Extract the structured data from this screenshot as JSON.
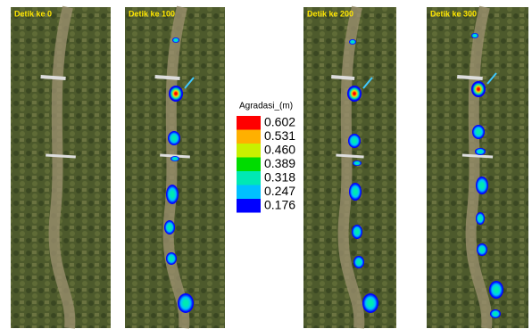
{
  "panels": [
    {
      "label": "Detik ke 0"
    },
    {
      "label": "Detik ke 100"
    },
    {
      "label": "Detik ke 200"
    },
    {
      "label": "Detik ke 300"
    }
  ],
  "legend": {
    "title": "Agradasi_(m)",
    "items": [
      {
        "label": "0.602",
        "color": "#ff0000"
      },
      {
        "label": "0.531",
        "color": "#ffb000"
      },
      {
        "label": "0.460",
        "color": "#c8f000"
      },
      {
        "label": "0.389",
        "color": "#00dc00"
      },
      {
        "label": "0.318",
        "color": "#00e8b4"
      },
      {
        "label": "0.247",
        "color": "#00c0ff"
      },
      {
        "label": "0.176",
        "color": "#0000ff"
      }
    ]
  }
}
